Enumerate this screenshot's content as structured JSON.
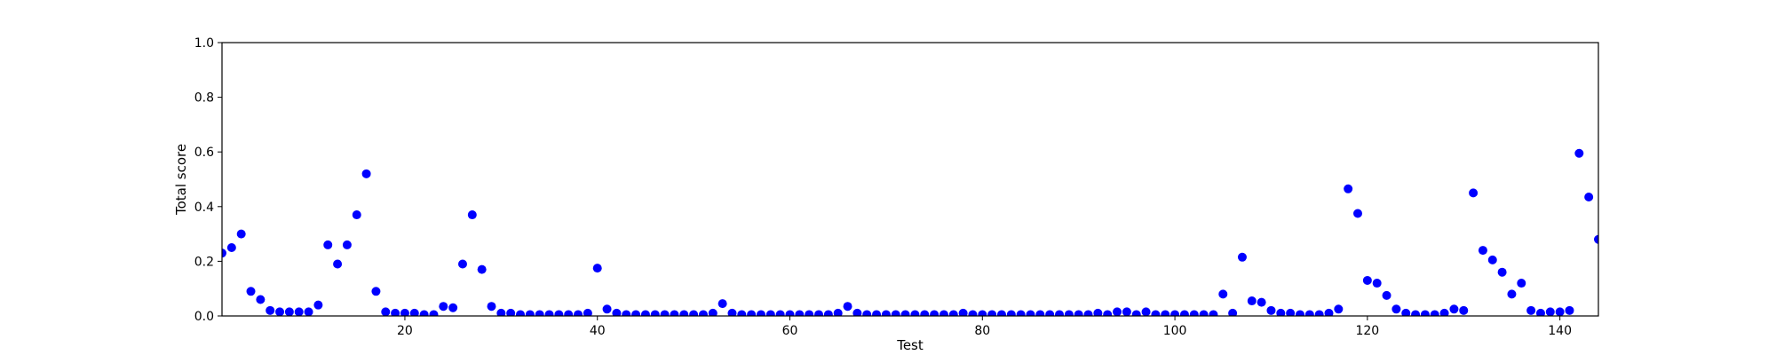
{
  "chart_data": {
    "type": "scatter",
    "title": "",
    "xlabel": "Test",
    "ylabel": "Total score",
    "xlim": [
      1,
      144
    ],
    "ylim": [
      0,
      1.0
    ],
    "xticks": [
      "20",
      "40",
      "60",
      "80",
      "100",
      "120",
      "140"
    ],
    "yticks": [
      "0.0",
      "0.2",
      "0.4",
      "0.6",
      "0.8",
      "1.0"
    ],
    "grid": false,
    "legend": "none",
    "marker_color": "#0000ff",
    "series": [
      {
        "x": [
          1,
          2,
          3,
          4,
          5,
          6,
          7,
          8,
          9,
          10,
          11,
          12,
          13,
          14,
          15,
          16,
          17,
          18,
          19,
          20,
          21,
          22,
          23,
          24,
          25,
          26,
          27,
          28,
          29,
          30,
          31,
          32,
          33,
          34,
          35,
          36,
          37,
          38,
          39,
          40,
          41,
          42,
          43,
          44,
          45,
          46,
          47,
          48,
          49,
          50,
          51,
          52,
          53,
          54,
          55,
          56,
          57,
          58,
          59,
          60,
          61,
          62,
          63,
          64,
          65,
          66,
          67,
          68,
          69,
          70,
          71,
          72,
          73,
          74,
          75,
          76,
          77,
          78,
          79,
          80,
          81,
          82,
          83,
          84,
          85,
          86,
          87,
          88,
          89,
          90,
          91,
          92,
          93,
          94,
          95,
          96,
          97,
          98,
          99,
          100,
          101,
          102,
          103,
          104,
          105,
          106,
          107,
          108,
          109,
          110,
          111,
          112,
          113,
          114,
          115,
          116,
          117,
          118,
          119,
          120,
          121,
          122,
          123,
          124,
          125,
          126,
          127,
          128,
          129,
          130,
          131,
          132,
          133,
          134,
          135,
          136,
          137,
          138,
          139,
          140,
          141,
          142,
          143,
          144
        ],
        "y": [
          0.23,
          0.25,
          0.3,
          0.09,
          0.06,
          0.02,
          0.015,
          0.015,
          0.015,
          0.015,
          0.04,
          0.26,
          0.19,
          0.26,
          0.37,
          0.52,
          0.09,
          0.015,
          0.01,
          0.01,
          0.01,
          0.005,
          0.005,
          0.035,
          0.03,
          0.19,
          0.37,
          0.17,
          0.035,
          0.01,
          0.01,
          0.005,
          0.005,
          0.005,
          0.005,
          0.005,
          0.005,
          0.005,
          0.01,
          0.175,
          0.025,
          0.01,
          0.005,
          0.005,
          0.005,
          0.005,
          0.005,
          0.005,
          0.005,
          0.005,
          0.005,
          0.01,
          0.045,
          0.01,
          0.005,
          0.005,
          0.005,
          0.005,
          0.005,
          0.005,
          0.005,
          0.005,
          0.005,
          0.005,
          0.01,
          0.035,
          0.01,
          0.005,
          0.005,
          0.005,
          0.005,
          0.005,
          0.005,
          0.005,
          0.005,
          0.005,
          0.005,
          0.01,
          0.005,
          0.005,
          0.005,
          0.005,
          0.005,
          0.005,
          0.005,
          0.005,
          0.005,
          0.005,
          0.005,
          0.005,
          0.005,
          0.01,
          0.005,
          0.015,
          0.015,
          0.005,
          0.015,
          0.005,
          0.005,
          0.005,
          0.005,
          0.005,
          0.005,
          0.005,
          0.08,
          0.01,
          0.215,
          0.055,
          0.05,
          0.02,
          0.01,
          0.01,
          0.005,
          0.005,
          0.005,
          0.01,
          0.025,
          0.465,
          0.375,
          0.13,
          0.12,
          0.075,
          0.025,
          0.01,
          0.005,
          0.005,
          0.005,
          0.01,
          0.025,
          0.02,
          0.45,
          0.24,
          0.205,
          0.16,
          0.08,
          0.12,
          0.02,
          0.01,
          0.015,
          0.015,
          0.02,
          0.595,
          0.435,
          0.28
        ]
      }
    ]
  }
}
